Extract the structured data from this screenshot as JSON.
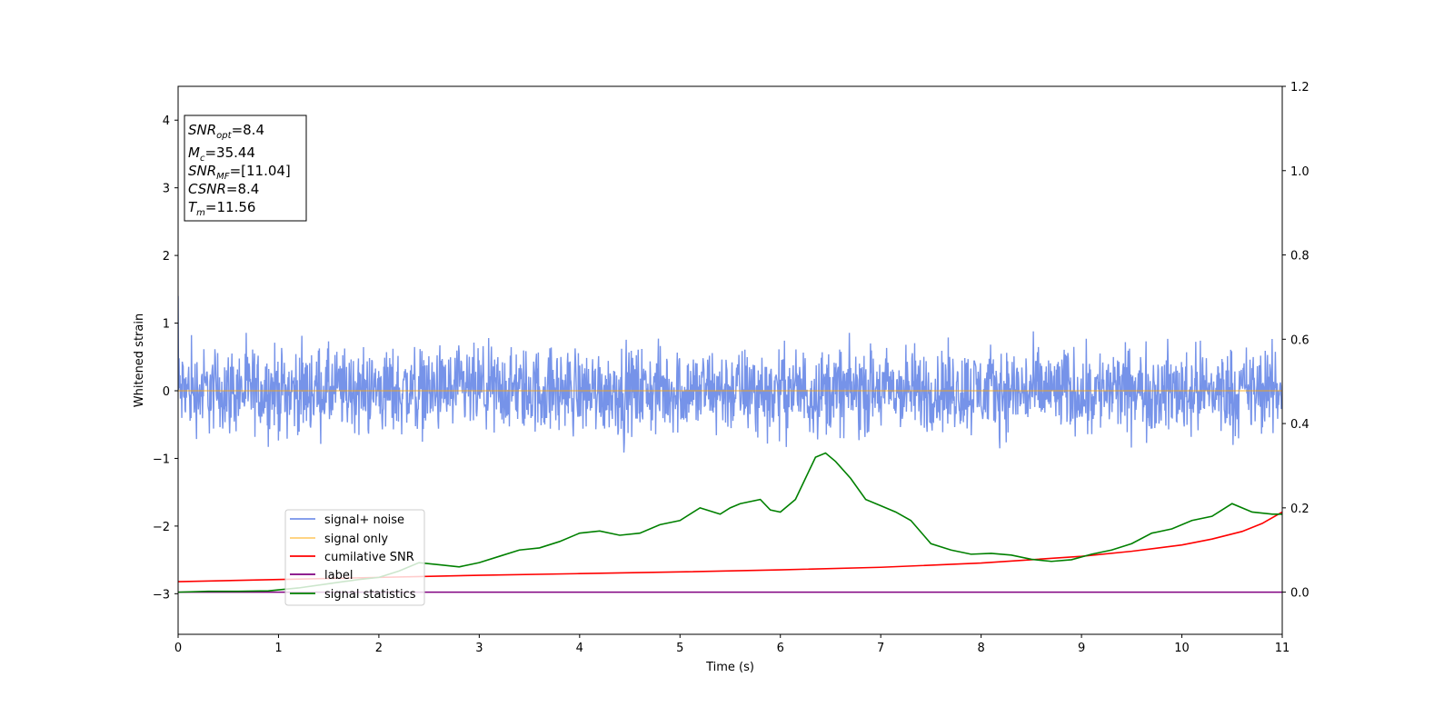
{
  "chart_data": {
    "type": "line",
    "xlabel": "Time (s)",
    "ylabel": "Whitened strain",
    "xlim": [
      0,
      11
    ],
    "ylim": [
      -3.6,
      4.5
    ],
    "y2lim": [
      -0.1,
      1.2
    ],
    "x_ticks": [
      "0",
      "1",
      "2",
      "3",
      "4",
      "5",
      "6",
      "7",
      "8",
      "9",
      "10",
      "11"
    ],
    "y_ticks": [
      "−3",
      "−2",
      "−1",
      "0",
      "1",
      "2",
      "3",
      "4"
    ],
    "y2_ticks": [
      "0.0",
      "0.2",
      "0.4",
      "0.6",
      "0.8",
      "1.0",
      "1.2"
    ],
    "grid": false,
    "legend_position": "lower-left",
    "info_box": {
      "position": "top-left",
      "lines": [
        {
          "main": "SNR",
          "sub": "opt",
          "value": "=8.4"
        },
        {
          "main": "M",
          "sub": "c",
          "value": "=35.44"
        },
        {
          "main": "SNR",
          "sub": "MF",
          "value": "=[11.04]"
        },
        {
          "main": "CSNR",
          "sub": "",
          "value": "=8.4"
        },
        {
          "main": "T",
          "sub": "m",
          "value": "=11.56"
        }
      ]
    },
    "series": [
      {
        "name": "signal+ noise",
        "axis": "left",
        "color": "#4169e1",
        "opacity": 0.72,
        "kind": "noise",
        "mean": 0,
        "envelope": [
          0.75,
          1.05
        ],
        "start_spike": 1.4
      },
      {
        "name": "signal only",
        "axis": "left",
        "color": "#ffa500",
        "opacity": 0.55,
        "kind": "flat",
        "value": 0
      },
      {
        "name": "cumilative SNR",
        "axis": "right",
        "color": "#ff0000",
        "x": [
          0,
          1,
          2,
          3,
          4,
          5,
          6,
          7,
          8,
          8.5,
          9,
          9.5,
          10,
          10.3,
          10.6,
          10.8,
          11
        ],
        "y": [
          0.025,
          0.03,
          0.035,
          0.04,
          0.044,
          0.048,
          0.053,
          0.059,
          0.069,
          0.077,
          0.085,
          0.097,
          0.112,
          0.126,
          0.144,
          0.163,
          0.19
        ]
      },
      {
        "name": "label",
        "axis": "right",
        "color": "#800080",
        "x": [
          0,
          11
        ],
        "y": [
          0,
          0
        ]
      },
      {
        "name": "signal statistics",
        "axis": "right",
        "color": "#008000",
        "x": [
          0,
          0.3,
          0.6,
          0.9,
          1.2,
          1.5,
          1.8,
          2.0,
          2.2,
          2.4,
          2.6,
          2.8,
          3.0,
          3.2,
          3.4,
          3.6,
          3.8,
          4.0,
          4.2,
          4.4,
          4.6,
          4.8,
          5.0,
          5.2,
          5.4,
          5.5,
          5.6,
          5.8,
          5.9,
          6.0,
          6.15,
          6.25,
          6.35,
          6.45,
          6.55,
          6.7,
          6.85,
          7.0,
          7.15,
          7.3,
          7.5,
          7.7,
          7.9,
          8.1,
          8.3,
          8.5,
          8.7,
          8.9,
          9.1,
          9.3,
          9.5,
          9.7,
          9.9,
          10.1,
          10.3,
          10.5,
          10.7,
          10.9,
          11
        ],
        "y": [
          0.0,
          0.002,
          0.002,
          0.003,
          0.01,
          0.02,
          0.03,
          0.035,
          0.05,
          0.07,
          0.065,
          0.06,
          0.07,
          0.085,
          0.1,
          0.105,
          0.12,
          0.14,
          0.145,
          0.135,
          0.14,
          0.16,
          0.17,
          0.2,
          0.185,
          0.2,
          0.21,
          0.22,
          0.195,
          0.19,
          0.22,
          0.27,
          0.32,
          0.33,
          0.31,
          0.27,
          0.22,
          0.205,
          0.19,
          0.17,
          0.115,
          0.1,
          0.09,
          0.092,
          0.088,
          0.078,
          0.073,
          0.077,
          0.09,
          0.1,
          0.115,
          0.14,
          0.15,
          0.17,
          0.18,
          0.21,
          0.19,
          0.185,
          0.185
        ]
      }
    ]
  }
}
